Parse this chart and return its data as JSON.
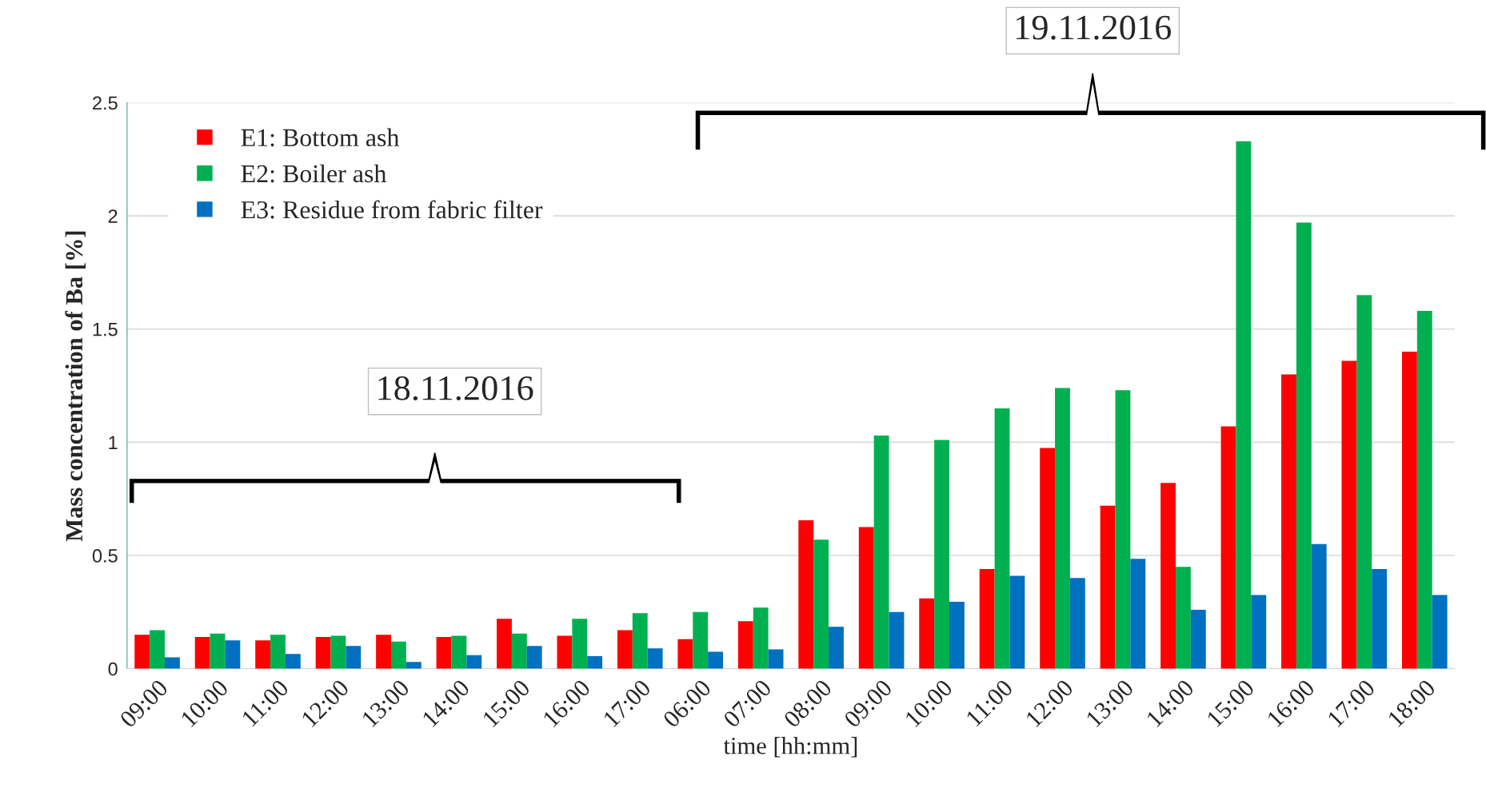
{
  "chart_data": {
    "type": "bar",
    "xlabel": "time [hh:mm]",
    "ylabel": "Mass concentration of Ba [%]",
    "categories": [
      "09:00",
      "10:00",
      "11:00",
      "12:00",
      "13:00",
      "14:00",
      "15:00",
      "16:00",
      "17:00",
      "06:00",
      "07:00",
      "08:00",
      "09:00",
      "10:00",
      "11:00",
      "12:00",
      "13:00",
      "14:00",
      "15:00",
      "16:00",
      "17:00",
      "18:00"
    ],
    "series": [
      {
        "name": "E1: Bottom ash",
        "color": "#ff0000",
        "values": [
          0.15,
          0.14,
          0.125,
          0.14,
          0.15,
          0.14,
          0.22,
          0.145,
          0.17,
          0.13,
          0.21,
          0.655,
          0.625,
          0.31,
          0.44,
          0.975,
          0.72,
          0.82,
          1.07,
          1.3,
          1.36,
          1.4
        ]
      },
      {
        "name": "E2: Boiler ash",
        "color": "#00b050",
        "values": [
          0.17,
          0.155,
          0.15,
          0.145,
          0.12,
          0.145,
          0.155,
          0.22,
          0.245,
          0.25,
          0.27,
          0.57,
          1.03,
          1.01,
          1.15,
          1.24,
          1.23,
          0.45,
          2.33,
          1.97,
          1.65,
          1.58
        ]
      },
      {
        "name": "E3: Residue from fabric filter",
        "color": "#0070c0",
        "values": [
          0.05,
          0.125,
          0.065,
          0.1,
          0.03,
          0.06,
          0.1,
          0.055,
          0.09,
          0.075,
          0.085,
          0.185,
          0.25,
          0.295,
          0.41,
          0.4,
          0.485,
          0.26,
          0.325,
          0.55,
          0.44,
          0.325
        ]
      }
    ],
    "annotations": [
      "18.11.2016",
      "19.11.2016"
    ],
    "ylim": [
      0,
      2.5
    ],
    "yticks": [
      0,
      0.5,
      1,
      1.5,
      2,
      2.5
    ],
    "grid": "y",
    "legend": "top left"
  }
}
